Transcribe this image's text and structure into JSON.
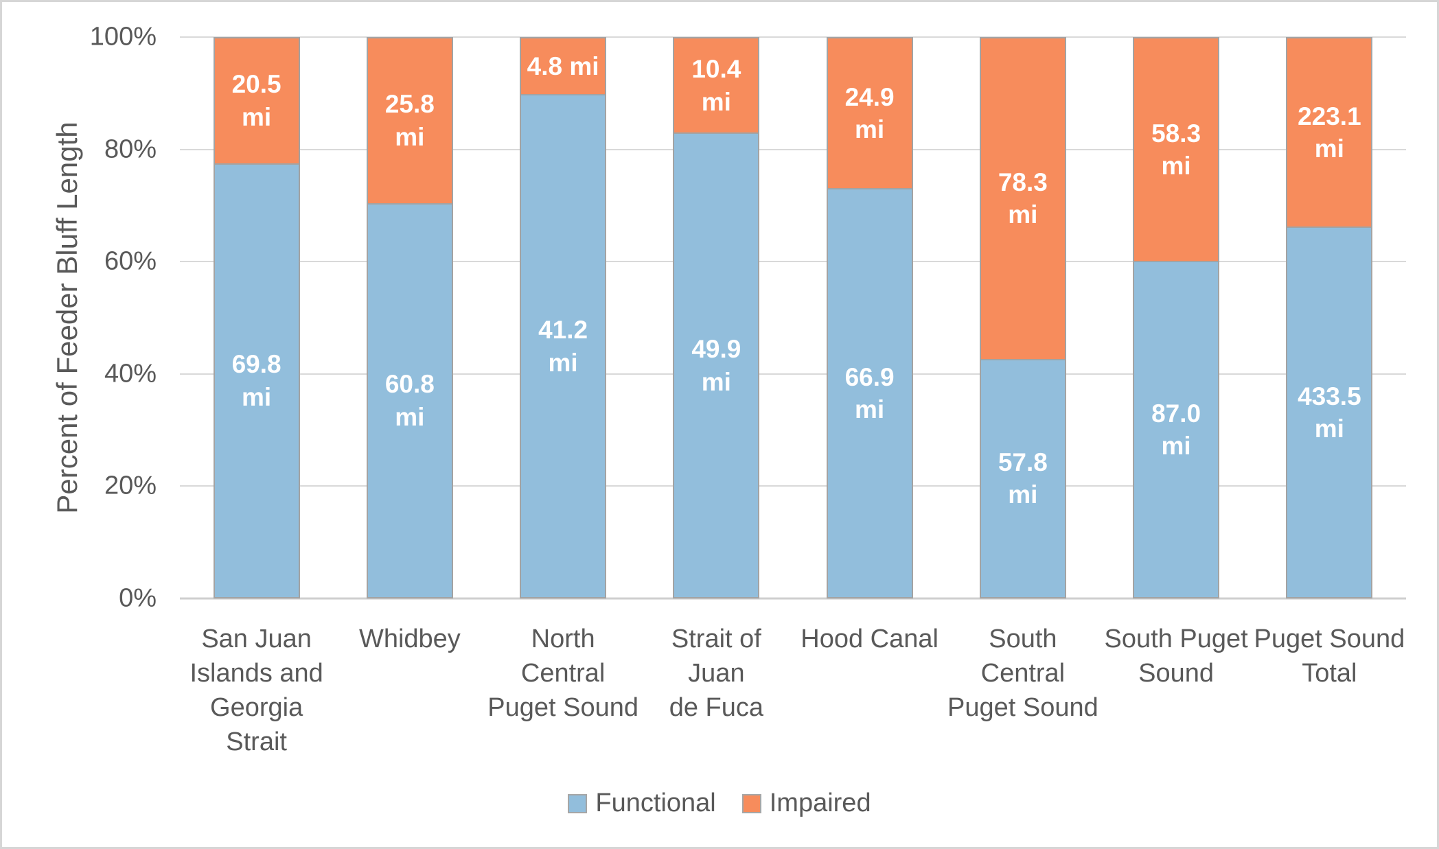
{
  "chart_data": {
    "type": "bar",
    "subtype": "stacked-100-percent",
    "title": "",
    "xlabel": "",
    "ylabel": "Percent of Feeder Bluff Length",
    "ylim": [
      0,
      100
    ],
    "ytick_labels": [
      "0%",
      "20%",
      "40%",
      "60%",
      "80%",
      "100%"
    ],
    "grid": true,
    "legend_position": "bottom-center",
    "categories": [
      "San Juan\nIslands and\nGeorgia\nStrait",
      "Whidbey",
      "North\nCentral\nPuget Sound",
      "Strait of Juan\nde Fuca",
      "Hood Canal",
      "South\nCentral\nPuget Sound",
      "South Puget\nSound",
      "Puget Sound\nTotal"
    ],
    "series": [
      {
        "name": "Functional",
        "color": "#92bedc",
        "values_mi": [
          69.8,
          60.8,
          41.2,
          49.9,
          66.9,
          57.8,
          87.0,
          433.5
        ]
      },
      {
        "name": "Impaired",
        "color": "#f78c5c",
        "values_mi": [
          20.5,
          25.8,
          4.8,
          10.4,
          24.9,
          78.3,
          58.3,
          223.1
        ]
      }
    ],
    "bar_labels": {
      "functional": [
        "69.8\nmi",
        "60.8\nmi",
        "41.2\nmi",
        "49.9\nmi",
        "66.9\nmi",
        "57.8\nmi",
        "87.0\nmi",
        "433.5\nmi"
      ],
      "impaired": [
        "20.5\nmi",
        "25.8\nmi",
        "4.8 mi",
        "10.4\nmi",
        "24.9\nmi",
        "78.3\nmi",
        "58.3\nmi",
        "223.1\nmi"
      ]
    },
    "functional_percent": [
      77.3,
      70.2,
      89.6,
      82.8,
      72.9,
      42.5,
      59.9,
      66.0
    ]
  },
  "colors": {
    "functional": "#92bedc",
    "impaired": "#f78c5c",
    "axis_text": "#595959",
    "gridline": "#d9d9d9",
    "axis_line": "#cfcfcf",
    "bar_border": "#a3a3a3",
    "chart_border": "#d6d6d6",
    "data_label_text": "#ffffff"
  }
}
